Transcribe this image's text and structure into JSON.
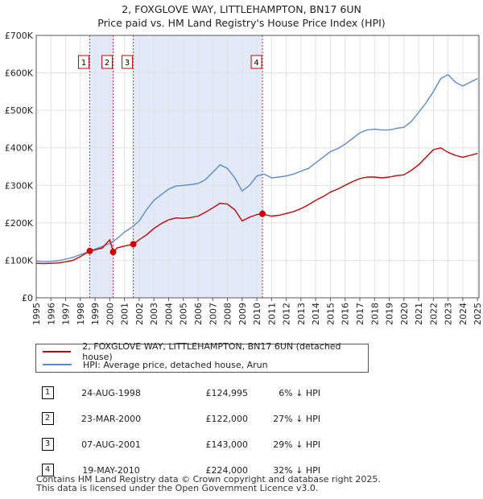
{
  "header": {
    "title_line1": "2, FOXGLOVE WAY, LITTLEHAMPTON, BN17 6UN",
    "title_line2": "Price paid vs. HM Land Registry's House Price Index (HPI)"
  },
  "legend": {
    "property_label": "2, FOXGLOVE WAY, LITTLEHAMPTON, BN17 6UN (detached house)",
    "hpi_label": "HPI: Average price, detached house, Arun"
  },
  "sales": [
    {
      "num": "1",
      "date": "24-AUG-1998",
      "price": "£124,995",
      "hpi": "6% ↓ HPI"
    },
    {
      "num": "2",
      "date": "23-MAR-2000",
      "price": "£122,000",
      "hpi": "27% ↓ HPI"
    },
    {
      "num": "3",
      "date": "07-AUG-2001",
      "price": "£143,000",
      "hpi": "29% ↓ HPI"
    },
    {
      "num": "4",
      "date": "19-MAY-2010",
      "price": "£224,000",
      "hpi": "32% ↓ HPI"
    }
  ],
  "footer": {
    "line1": "Contains HM Land Registry data © Crown copyright and database right 2025.",
    "line2": "This data is licensed under the Open Government Licence v3.0."
  },
  "colors": {
    "property": "#cc0000",
    "hpi": "#5b8bd0",
    "shade": "#dde6f8",
    "vline": "#cc0000"
  },
  "chart_data": {
    "type": "line",
    "xlim": [
      1995,
      2025.1
    ],
    "ylim": [
      0,
      700000
    ],
    "x_ticks": [
      1995,
      1996,
      1997,
      1998,
      1999,
      2000,
      2001,
      2002,
      2003,
      2004,
      2005,
      2006,
      2007,
      2008,
      2009,
      2010,
      2011,
      2012,
      2013,
      2014,
      2015,
      2016,
      2017,
      2018,
      2019,
      2020,
      2021,
      2022,
      2023,
      2024,
      2025
    ],
    "y_ticks": [
      {
        "value": 0,
        "label": "£0"
      },
      {
        "value": 100000,
        "label": "£100K"
      },
      {
        "value": 200000,
        "label": "£200K"
      },
      {
        "value": 300000,
        "label": "£300K"
      },
      {
        "value": 400000,
        "label": "£400K"
      },
      {
        "value": 500000,
        "label": "£500K"
      },
      {
        "value": 600000,
        "label": "£600K"
      },
      {
        "value": 700000,
        "label": "£700K"
      }
    ],
    "grid": true,
    "shaded_periods": [
      [
        1998.64,
        2000.23
      ],
      [
        2001.6,
        2010.38
      ]
    ],
    "series": [
      {
        "name": "HPI: Average price, detached house, Arun",
        "x": [
          1995,
          1995.5,
          1996,
          1996.5,
          1997,
          1997.5,
          1998,
          1998.5,
          1999,
          1999.5,
          2000,
          2000.5,
          2001,
          2001.5,
          2002,
          2002.5,
          2003,
          2003.5,
          2004,
          2004.5,
          2005,
          2005.5,
          2006,
          2006.5,
          2007,
          2007.5,
          2008,
          2008.5,
          2009,
          2009.5,
          2010,
          2010.5,
          2011,
          2011.5,
          2012,
          2012.5,
          2013,
          2013.5,
          2014,
          2014.5,
          2015,
          2015.5,
          2016,
          2016.5,
          2017,
          2017.5,
          2018,
          2018.5,
          2019,
          2019.5,
          2020,
          2020.5,
          2021,
          2021.5,
          2022,
          2022.5,
          2023,
          2023.5,
          2024,
          2024.5,
          2025
        ],
        "values": [
          98000,
          96000,
          97000,
          99000,
          103000,
          108000,
          115000,
          122000,
          130000,
          137000,
          145000,
          158000,
          175000,
          188000,
          205000,
          235000,
          260000,
          275000,
          290000,
          298000,
          300000,
          302000,
          305000,
          315000,
          335000,
          355000,
          345000,
          320000,
          285000,
          300000,
          325000,
          330000,
          320000,
          322000,
          325000,
          330000,
          338000,
          345000,
          360000,
          375000,
          390000,
          398000,
          410000,
          425000,
          440000,
          448000,
          450000,
          448000,
          448000,
          452000,
          455000,
          470000,
          495000,
          520000,
          550000,
          585000,
          595000,
          575000,
          565000,
          575000,
          585000
        ]
      },
      {
        "name": "2, FOXGLOVE WAY, LITTLEHAMPTON, BN17 6UN (detached house)",
        "x": [
          1995,
          1995.5,
          1996,
          1996.5,
          1997,
          1997.5,
          1998,
          1998.64,
          1999,
          1999.5,
          2000,
          2000.23,
          2000.5,
          2001,
          2001.6,
          2002,
          2002.5,
          2003,
          2003.5,
          2004,
          2004.5,
          2005,
          2005.5,
          2006,
          2006.5,
          2007,
          2007.5,
          2008,
          2008.5,
          2009,
          2009.5,
          2010,
          2010.38,
          2010.5,
          2011,
          2011.5,
          2012,
          2012.5,
          2013,
          2013.5,
          2014,
          2014.5,
          2015,
          2015.5,
          2016,
          2016.5,
          2017,
          2017.5,
          2018,
          2018.5,
          2019,
          2019.5,
          2020,
          2020.5,
          2021,
          2021.5,
          2022,
          2022.5,
          2023,
          2023.5,
          2024,
          2024.5,
          2025
        ],
        "values": [
          92000,
          91000,
          92000,
          93000,
          96000,
          100000,
          110000,
          124995,
          128000,
          133000,
          155000,
          122000,
          133000,
          138000,
          143000,
          155000,
          168000,
          185000,
          198000,
          208000,
          213000,
          212000,
          214000,
          218000,
          228000,
          240000,
          252000,
          250000,
          235000,
          205000,
          215000,
          222000,
          224000,
          222000,
          218000,
          220000,
          225000,
          230000,
          238000,
          248000,
          260000,
          270000,
          282000,
          290000,
          300000,
          310000,
          318000,
          322000,
          322000,
          320000,
          322000,
          326000,
          328000,
          340000,
          355000,
          375000,
          395000,
          400000,
          388000,
          380000,
          375000,
          380000,
          385000
        ]
      }
    ],
    "sale_points": [
      {
        "label": "1",
        "x": 1998.64,
        "value": 124995
      },
      {
        "label": "2",
        "x": 2000.23,
        "value": 122000
      },
      {
        "label": "3",
        "x": 2001.6,
        "value": 143000
      },
      {
        "label": "4",
        "x": 2010.38,
        "value": 224000
      }
    ]
  }
}
